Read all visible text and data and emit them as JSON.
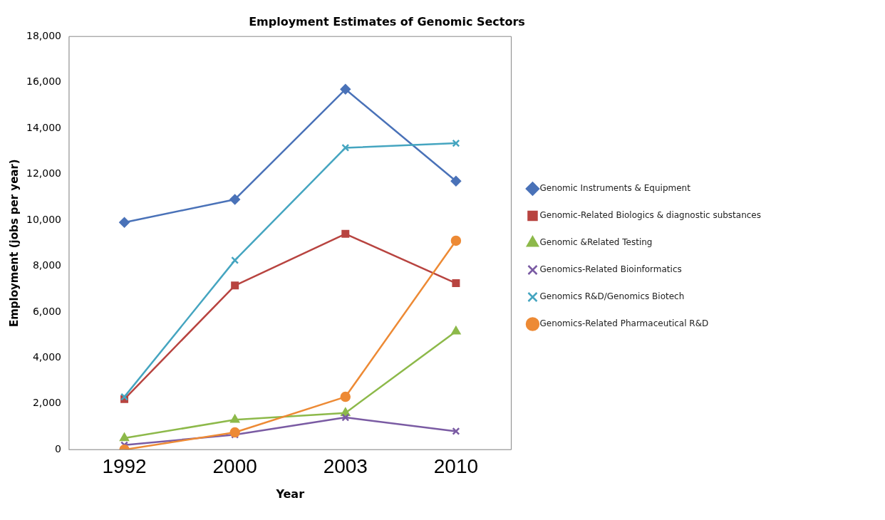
{
  "chart_data": {
    "type": "line",
    "title": "Employment Estimates of Genomic Sectors",
    "xlabel": "Year",
    "ylabel": "Employment (jobs per year)",
    "categories": [
      "1992",
      "2000",
      "2003",
      "2010"
    ],
    "series": [
      {
        "name": "Genomic Instruments & Equipment",
        "color": "#4a72b8",
        "marker": "diamond",
        "values": [
          9900,
          10900,
          15700,
          11700
        ]
      },
      {
        "name": "Genomic-Related Biologics & diagnostic substances",
        "color": "#b84440",
        "marker": "square",
        "values": [
          2200,
          7150,
          9400,
          7250
        ]
      },
      {
        "name": "Genomic &Related Testing",
        "color": "#8db94a",
        "marker": "triangle",
        "values": [
          500,
          1300,
          1600,
          5150
        ]
      },
      {
        "name": "Genomics-Related Bioinformatics",
        "color": "#7a5ba3",
        "marker": "cross",
        "values": [
          200,
          650,
          1400,
          800
        ]
      },
      {
        "name": "Genomics R&D/Genomics Biotech",
        "color": "#45a5c0",
        "marker": "cross",
        "values": [
          2300,
          8250,
          13150,
          13350
        ]
      },
      {
        "name": "Genomics-Related Pharmaceutical R&D",
        "color": "#ed8a35",
        "marker": "circle",
        "values": [
          0,
          750,
          2300,
          9100
        ]
      }
    ],
    "ylim": [
      0,
      18000
    ],
    "yticks": [
      0,
      {
        "value": 2000,
        "label": "2,000"
      },
      {
        "value": 4000,
        "label": "4,000"
      },
      {
        "value": 6000,
        "label": "6,000"
      },
      {
        "value": 8000,
        "label": "8,000"
      },
      {
        "value": 10000,
        "label": "10,000"
      },
      {
        "value": 12000,
        "label": "12,000"
      },
      {
        "value": 14000,
        "label": "14,000"
      },
      {
        "value": 16000,
        "label": "16,000"
      },
      {
        "value": 18000,
        "label": "18,000"
      }
    ],
    "legend": "right",
    "grid": false
  }
}
